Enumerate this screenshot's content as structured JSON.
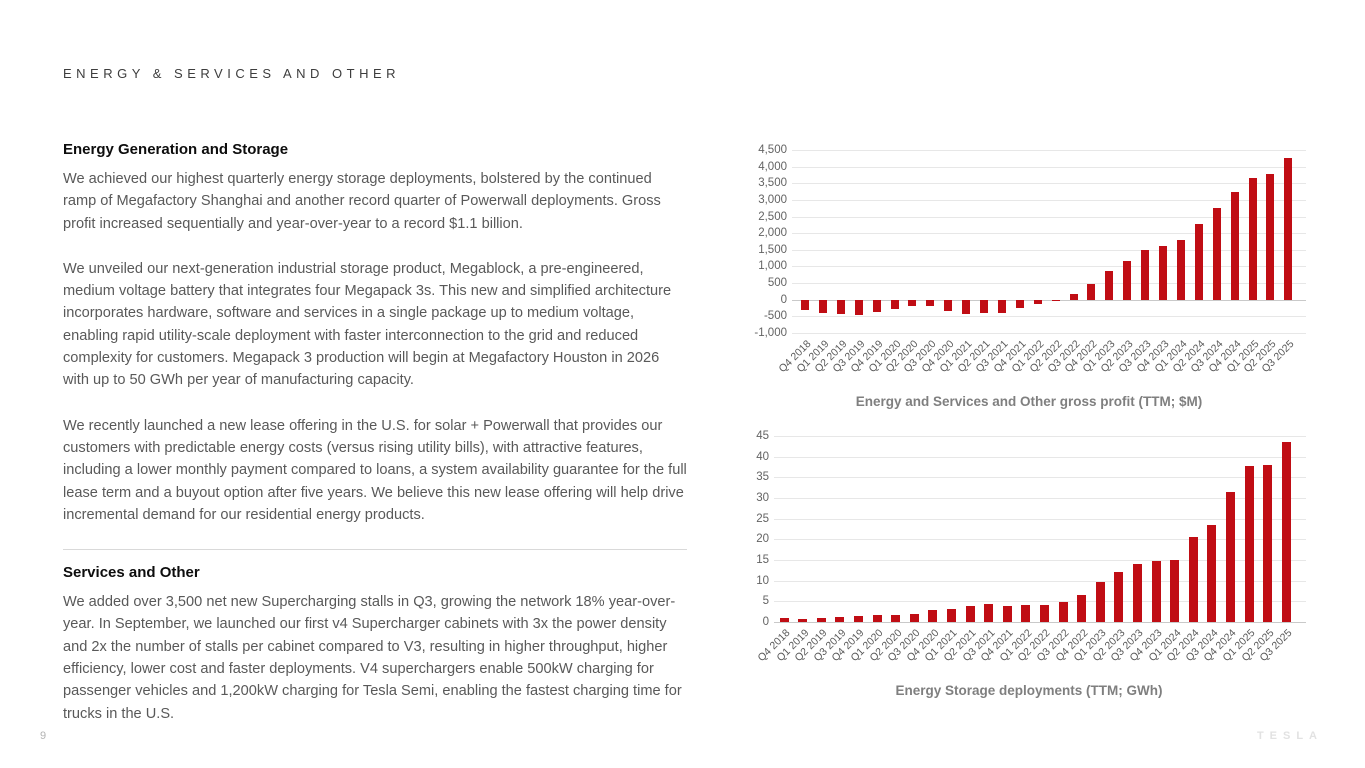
{
  "page": {
    "header": "ENERGY & SERVICES AND OTHER",
    "page_number": "9",
    "brand_logo": "TESLA"
  },
  "left_column": {
    "sections": [
      {
        "heading": "Energy Generation and Storage",
        "paragraphs": [
          "We achieved our highest quarterly energy storage deployments, bolstered by the continued ramp of Megafactory Shanghai and another record quarter of Powerwall deployments. Gross profit increased sequentially and year-over-year to a record $1.1 billion.",
          "We unveiled our next-generation industrial storage product, Megablock, a pre-engineered, medium voltage battery that integrates four Megapack 3s. This new and simplified architecture incorporates hardware, software and services in a single package up to medium voltage, enabling rapid utility-scale deployment with faster interconnection to the grid and reduced complexity for customers. Megapack 3 production will begin at Megafactory Houston in 2026 with up to 50 GWh per year of manufacturing capacity.",
          "We recently launched a new lease offering in the U.S. for solar + Powerwall that provides our customers with predictable energy costs (versus rising utility bills), with attractive features, including a lower monthly payment compared to loans, a system availability guarantee for the full lease term and a buyout option after five years. We believe this new lease offering will help drive incremental demand for our residential energy products."
        ]
      },
      {
        "heading": "Services and Other",
        "paragraphs": [
          "We added over 3,500 net new Supercharging stalls in Q3, growing the network 18% year-over-year. In September, we launched our first v4 Supercharger cabinets with 3x the power density and 2x the number of stalls per cabinet compared to V3, resulting in higher throughput, higher efficiency, lower cost and faster deployments. V4 superchargers enable 500kW charging for passenger vehicles and 1,200kW charging for Tesla Semi, enabling the fastest charging time for trucks in the U.S."
        ]
      }
    ]
  },
  "chart_data": [
    {
      "type": "bar",
      "title": "Energy and Services and Other gross profit (TTM; $M)",
      "xlabel": "",
      "ylabel": "",
      "ylim": [
        -1000,
        4500
      ],
      "ytick_step": 500,
      "ytick_format": "comma",
      "grid": true,
      "legend": "none",
      "bar_color": "#c00d14",
      "categories": [
        "Q4 2018",
        "Q1 2019",
        "Q2 2019",
        "Q3 2019",
        "Q4 2019",
        "Q1 2020",
        "Q2 2020",
        "Q3 2020",
        "Q4 2020",
        "Q1 2021",
        "Q2 2021",
        "Q3 2021",
        "Q4 2021",
        "Q1 2022",
        "Q2 2022",
        "Q3 2022",
        "Q4 2022",
        "Q1 2023",
        "Q2 2023",
        "Q3 2023",
        "Q4 2023",
        "Q1 2024",
        "Q2 2024",
        "Q3 2024",
        "Q4 2024",
        "Q1 2025",
        "Q2 2025",
        "Q3 2025"
      ],
      "values": [
        -300,
        -400,
        -440,
        -450,
        -360,
        -270,
        -200,
        -190,
        -340,
        -440,
        -410,
        -400,
        -260,
        -130,
        -30,
        180,
        470,
        870,
        1150,
        1500,
        1620,
        1790,
        2270,
        2750,
        3250,
        3670,
        3770,
        4250
      ]
    },
    {
      "type": "bar",
      "title": "Energy Storage deployments (TTM; GWh)",
      "xlabel": "",
      "ylabel": "",
      "ylim": [
        0,
        45
      ],
      "ytick_step": 5,
      "ytick_format": "plain",
      "grid": true,
      "legend": "none",
      "bar_color": "#c00d14",
      "categories": [
        "Q4 2018",
        "Q1 2019",
        "Q2 2019",
        "Q3 2019",
        "Q4 2019",
        "Q1 2020",
        "Q2 2020",
        "Q3 2020",
        "Q4 2020",
        "Q1 2021",
        "Q2 2021",
        "Q3 2021",
        "Q4 2021",
        "Q1 2022",
        "Q2 2022",
        "Q3 2022",
        "Q4 2022",
        "Q1 2023",
        "Q2 2023",
        "Q3 2023",
        "Q4 2023",
        "Q1 2024",
        "Q2 2024",
        "Q3 2024",
        "Q4 2024",
        "Q1 2025",
        "Q2 2025",
        "Q3 2025"
      ],
      "values": [
        0.9,
        0.8,
        1.0,
        1.2,
        1.5,
        1.6,
        1.6,
        1.9,
        2.9,
        3.1,
        3.8,
        4.4,
        3.9,
        4.2,
        4.1,
        4.9,
        6.5,
        9.6,
        12.2,
        14.0,
        14.7,
        14.9,
        20.6,
        23.5,
        31.4,
        37.8,
        38.0,
        43.5
      ]
    }
  ]
}
